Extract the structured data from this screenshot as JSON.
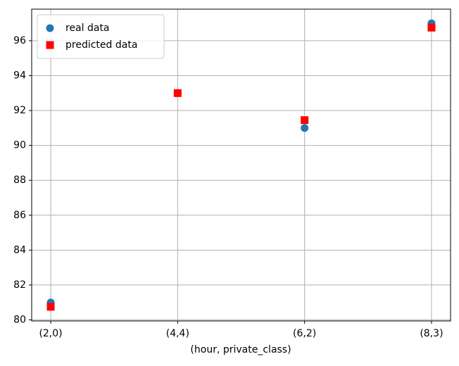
{
  "chart_data": {
    "type": "scatter",
    "x_label": "(hour, private_class)",
    "categories": [
      "(2,0)",
      "(4,4)",
      "(6,2)",
      "(8,3)"
    ],
    "series": [
      {
        "name": "real data",
        "color": "#1f77b4",
        "marker": "circle",
        "values": [
          81,
          93,
          91,
          97
        ]
      },
      {
        "name": "predicted data",
        "color": "#ff0000",
        "marker": "square",
        "values": [
          80.75,
          93,
          91.45,
          96.75
        ]
      }
    ],
    "ylim": [
      79.94,
      97.81
    ],
    "yticks": [
      80,
      82,
      84,
      86,
      88,
      90,
      92,
      94,
      96
    ],
    "grid": true,
    "legend": "upper-left"
  }
}
